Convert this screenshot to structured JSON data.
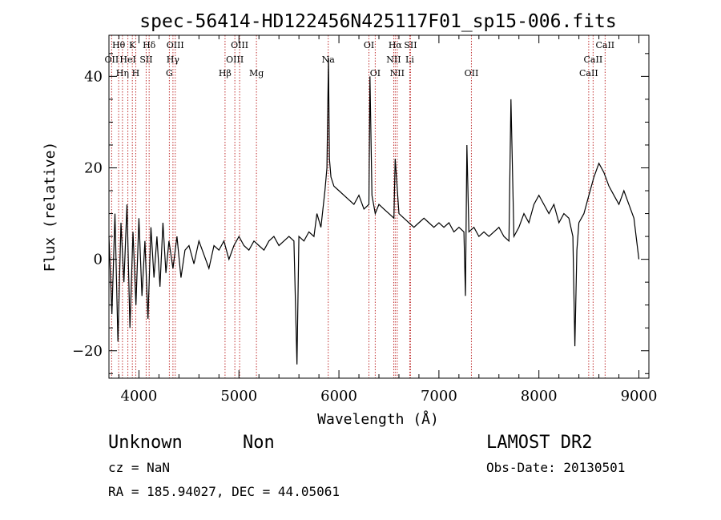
{
  "chart_data": {
    "type": "line",
    "title": "spec-56414-HD122456N425117F01_sp15-006.fits",
    "xlabel": "Wavelength (Å)",
    "ylabel": "Flux (relative)",
    "xlim": [
      3700,
      9100
    ],
    "ylim": [
      -26,
      49
    ],
    "xticks": [
      4000,
      5000,
      6000,
      7000,
      8000,
      9000
    ],
    "yticks": [
      -20,
      0,
      20,
      40
    ],
    "grid": false,
    "line_color": "#000000",
    "marker_color": "#c03030",
    "series": [
      {
        "x": [
          3700,
          3730,
          3760,
          3790,
          3820,
          3850,
          3880,
          3910,
          3940,
          3970,
          4000,
          4030,
          4060,
          4090,
          4120,
          4150,
          4180,
          4210,
          4240,
          4270,
          4300,
          4340,
          4380,
          4420,
          4460,
          4500,
          4550,
          4600,
          4650,
          4700,
          4750,
          4800,
          4850,
          4900,
          4950,
          5000,
          5050,
          5100,
          5150,
          5200,
          5250,
          5300,
          5350,
          5400,
          5450,
          5500,
          5550,
          5580,
          5600,
          5650,
          5700,
          5750,
          5780,
          5820,
          5860,
          5880,
          5895,
          5905,
          5920,
          5950,
          6000,
          6050,
          6100,
          6150,
          6200,
          6250,
          6300,
          6310,
          6330,
          6363,
          6400,
          6450,
          6500,
          6550,
          6563,
          6600,
          6650,
          6700,
          6750,
          6800,
          6850,
          6900,
          6950,
          7000,
          7050,
          7100,
          7150,
          7200,
          7250,
          7265,
          7280,
          7300,
          7350,
          7400,
          7450,
          7500,
          7550,
          7600,
          7650,
          7700,
          7720,
          7750,
          7800,
          7850,
          7900,
          7950,
          8000,
          8050,
          8100,
          8150,
          8200,
          8250,
          8300,
          8340,
          8360,
          8380,
          8400,
          8450,
          8500,
          8550,
          8600,
          8650,
          8700,
          8750,
          8800,
          8850,
          8900,
          8950,
          9000
        ],
        "y": [
          5,
          -12,
          10,
          -18,
          8,
          -5,
          12,
          -15,
          6,
          -10,
          9,
          -8,
          4,
          -13,
          7,
          -4,
          5,
          -6,
          8,
          -3,
          4,
          -2,
          5,
          -4,
          2,
          3,
          -1,
          4,
          1,
          -2,
          3,
          2,
          4,
          0,
          3,
          5,
          3,
          2,
          4,
          3,
          2,
          4,
          5,
          3,
          4,
          5,
          4,
          -23,
          5,
          4,
          6,
          5,
          10,
          7,
          15,
          20,
          44,
          22,
          18,
          16,
          15,
          14,
          13,
          12,
          14,
          11,
          12,
          40,
          14,
          10,
          12,
          11,
          10,
          9,
          22,
          10,
          9,
          8,
          7,
          8,
          9,
          8,
          7,
          8,
          7,
          8,
          6,
          7,
          6,
          -8,
          25,
          6,
          7,
          5,
          6,
          5,
          6,
          7,
          5,
          4,
          35,
          5,
          7,
          10,
          8,
          12,
          14,
          12,
          10,
          12,
          8,
          10,
          9,
          5,
          -19,
          2,
          8,
          10,
          14,
          18,
          21,
          19,
          16,
          14,
          12,
          15,
          12,
          9,
          0
        ]
      }
    ],
    "annotations": [
      {
        "label": "Hθ",
        "x": 3797,
        "row": 0
      },
      {
        "label": "K",
        "x": 3934,
        "row": 0
      },
      {
        "label": "Hδ",
        "x": 4102,
        "row": 0
      },
      {
        "label": "OIII",
        "x": 4363,
        "row": 0
      },
      {
        "label": "OIII",
        "x": 5007,
        "row": 0
      },
      {
        "label": "OI",
        "x": 6300,
        "row": 0
      },
      {
        "label": "Hα",
        "x": 6563,
        "row": 0
      },
      {
        "label": "SII",
        "x": 6716,
        "row": 0
      },
      {
        "label": "CaII",
        "x": 8662,
        "row": 0
      },
      {
        "label": "OII",
        "x": 3727,
        "row": 1
      },
      {
        "label": "HeI",
        "x": 3889,
        "row": 1
      },
      {
        "label": "SII",
        "x": 4072,
        "row": 1
      },
      {
        "label": "Hγ",
        "x": 4340,
        "row": 1
      },
      {
        "label": "OIII",
        "x": 4959,
        "row": 1
      },
      {
        "label": "Na",
        "x": 5893,
        "row": 1
      },
      {
        "label": "NII",
        "x": 6548,
        "row": 1
      },
      {
        "label": "Li",
        "x": 6708,
        "row": 1
      },
      {
        "label": "CaII",
        "x": 8542,
        "row": 1
      },
      {
        "label": "Hη",
        "x": 3835,
        "row": 2
      },
      {
        "label": "H",
        "x": 3968,
        "row": 2
      },
      {
        "label": "G",
        "x": 4304,
        "row": 2
      },
      {
        "label": "Hβ",
        "x": 4861,
        "row": 2
      },
      {
        "label": "Mg",
        "x": 5175,
        "row": 2
      },
      {
        "label": "OI",
        "x": 6363,
        "row": 2
      },
      {
        "label": "NII",
        "x": 6583,
        "row": 2
      },
      {
        "label": "OII",
        "x": 7325,
        "row": 2
      },
      {
        "label": "CaII",
        "x": 8498,
        "row": 2
      }
    ]
  },
  "info": {
    "object_class": "Unknown",
    "subclass": "Non",
    "cz": "cz = NaN",
    "coords": "RA = 185.94027, DEC =  44.05061",
    "survey": "LAMOST DR2",
    "obs_date": "Obs-Date: 20130501"
  }
}
